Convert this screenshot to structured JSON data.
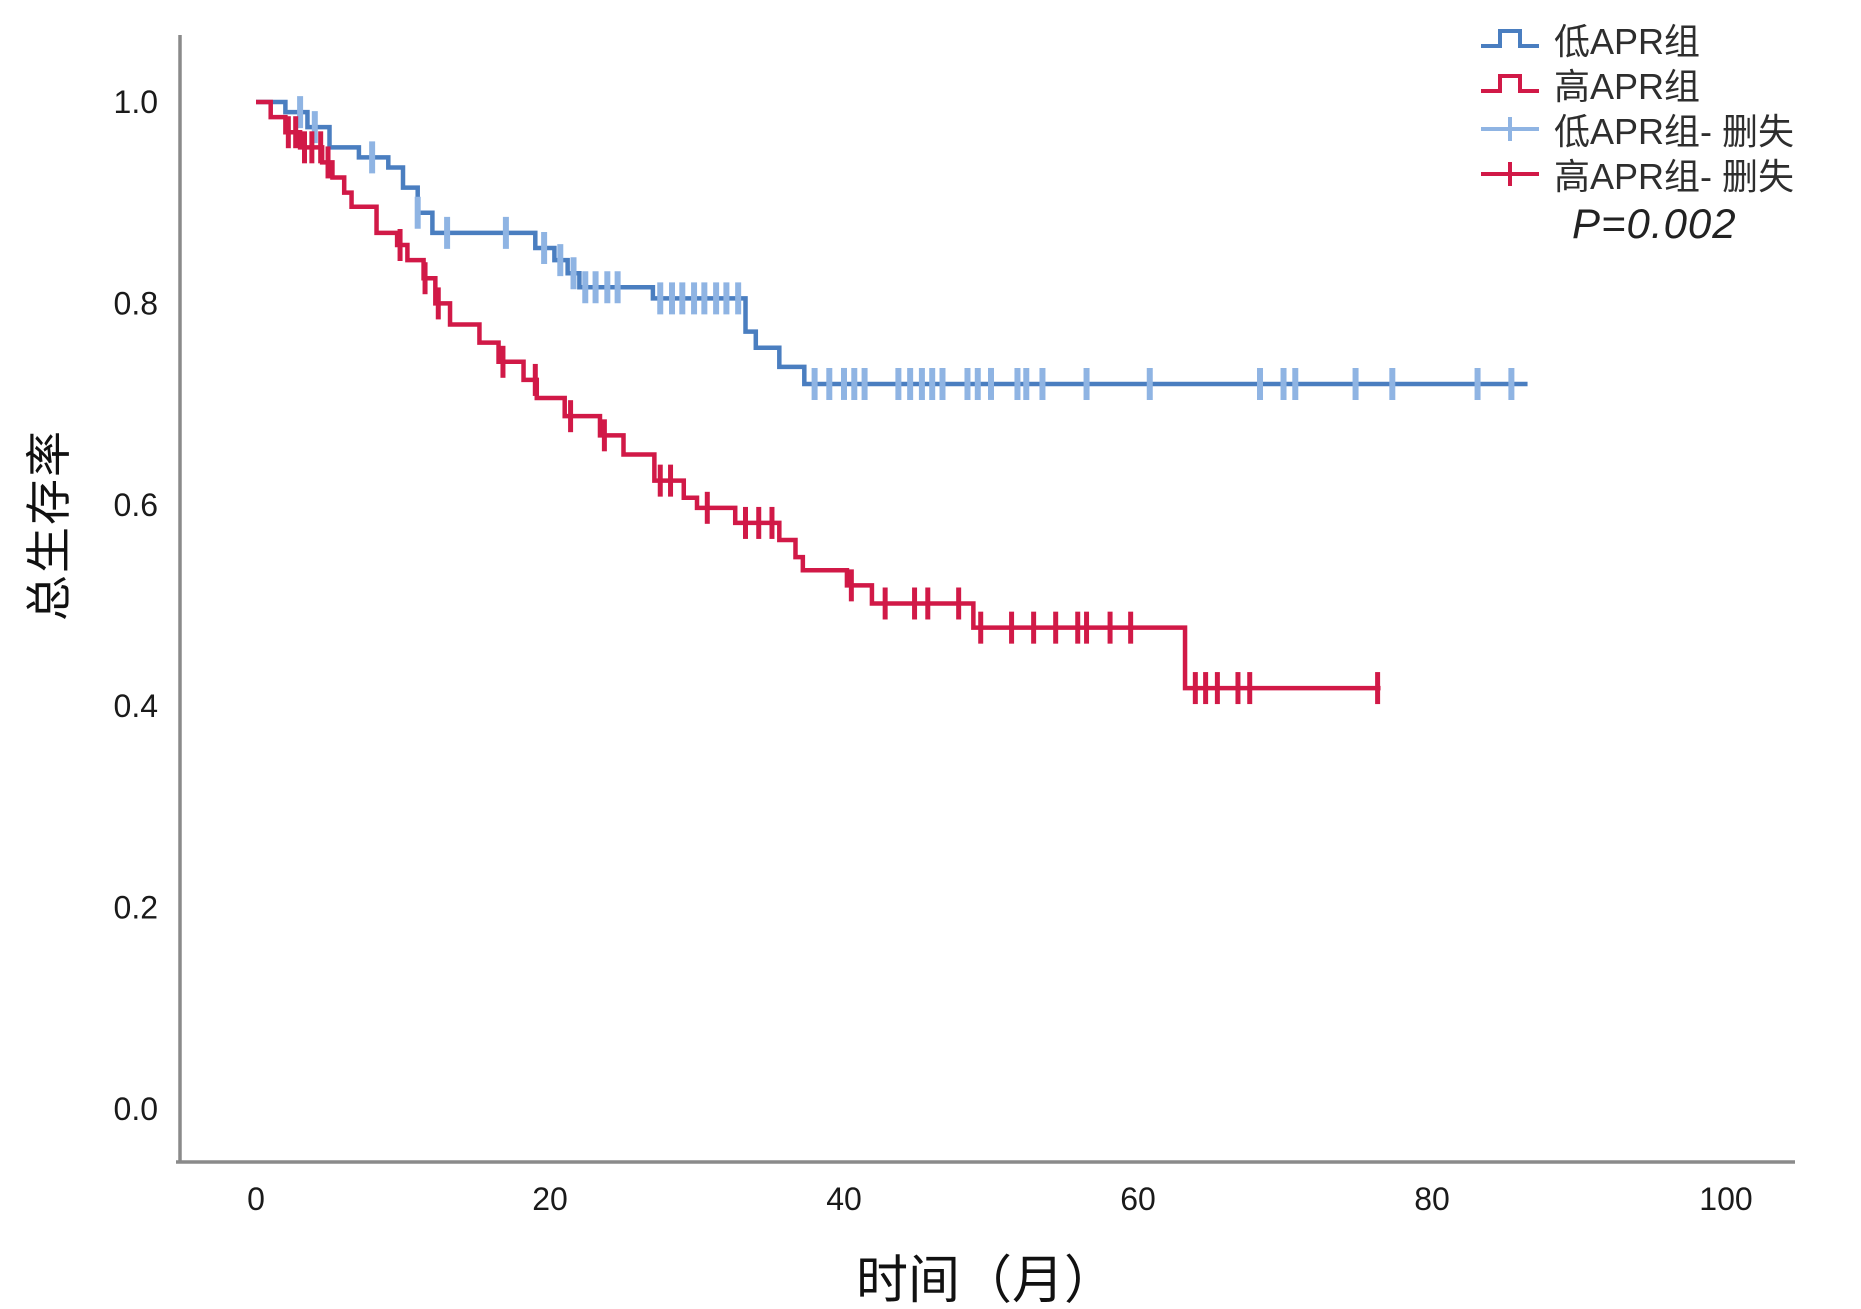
{
  "figure": {
    "colors": {
      "blue": "#4a7ec0",
      "blue_censor": "#8fb4e3",
      "red": "#d11947",
      "red_censor": "#d11947",
      "axis": "#8a8a8a",
      "text": "#1a1a1a"
    },
    "legend": {
      "position": "top-right",
      "items": [
        {
          "label": "低APR组",
          "marker": "step-line",
          "color_key": "blue"
        },
        {
          "label": "高APR组",
          "marker": "step-line",
          "color_key": "red"
        },
        {
          "label": "低APR组- 删失",
          "marker": "censor-cross",
          "color_key": "blue_censor"
        },
        {
          "label": "高APR组- 删失",
          "marker": "censor-cross",
          "color_key": "red_censor"
        }
      ]
    },
    "annotation": {
      "p_value": "P=0.002"
    }
  },
  "chart_data": {
    "type": "line",
    "subtype": "kaplan-meier-step-survival",
    "title": "",
    "xlabel": "时间（月）",
    "ylabel": "总生存率",
    "xlim": [
      0,
      105
    ],
    "ylim": [
      0.0,
      1.05
    ],
    "grid": false,
    "x_ticks": [
      0,
      20,
      40,
      60,
      80,
      100
    ],
    "y_ticks": [
      {
        "value": 1.0,
        "label": "1.0"
      },
      {
        "value": 0.8,
        "label": "0.8"
      },
      {
        "value": 0.6,
        "label": "0.6"
      },
      {
        "value": 0.4,
        "label": "0.4"
      },
      {
        "value": 0.2,
        "label": "0.2"
      },
      {
        "value": 0.0,
        "label": "0.0"
      }
    ],
    "series": [
      {
        "name": "低APR组",
        "color_key": "blue",
        "censor_color_key": "blue_censor",
        "end_time": 86.5,
        "steps": [
          [
            0,
            1.0
          ],
          [
            2,
            0.99
          ],
          [
            3.5,
            0.975
          ],
          [
            5,
            0.955
          ],
          [
            7,
            0.945
          ],
          [
            9,
            0.935
          ],
          [
            10,
            0.915
          ],
          [
            11,
            0.89
          ],
          [
            12,
            0.87
          ],
          [
            19,
            0.855
          ],
          [
            20.3,
            0.843
          ],
          [
            21.2,
            0.83
          ],
          [
            22,
            0.816
          ],
          [
            27,
            0.805
          ],
          [
            33.3,
            0.772
          ],
          [
            34,
            0.756
          ],
          [
            35.6,
            0.737
          ],
          [
            37.3,
            0.72
          ]
        ],
        "censor_times": [
          3,
          4,
          7.9,
          11,
          13,
          17,
          19.6,
          20.7,
          21.6,
          22.4,
          23.1,
          23.9,
          24.6,
          27.5,
          28.3,
          29,
          29.8,
          30.5,
          31.3,
          32,
          32.8,
          38,
          39,
          40,
          40.7,
          41.4,
          43.7,
          44.5,
          45.3,
          46,
          46.7,
          48.4,
          49.1,
          50,
          51.8,
          52.4,
          53.5,
          56.5,
          60.8,
          68.3,
          69.9,
          70.7,
          74.8,
          77.3,
          83.1,
          85.4
        ]
      },
      {
        "name": "高APR组",
        "color_key": "red",
        "censor_color_key": "red_censor",
        "end_time": 76.5,
        "steps": [
          [
            0,
            1.0
          ],
          [
            1,
            0.985
          ],
          [
            2,
            0.97
          ],
          [
            3,
            0.955
          ],
          [
            4.5,
            0.94
          ],
          [
            5.2,
            0.925
          ],
          [
            6,
            0.91
          ],
          [
            6.5,
            0.896
          ],
          [
            8.2,
            0.87
          ],
          [
            9.6,
            0.858
          ],
          [
            10.3,
            0.843
          ],
          [
            11.4,
            0.825
          ],
          [
            12.2,
            0.8
          ],
          [
            13.2,
            0.779
          ],
          [
            15.2,
            0.761
          ],
          [
            16.5,
            0.742
          ],
          [
            18.2,
            0.724
          ],
          [
            19.1,
            0.706
          ],
          [
            21,
            0.688
          ],
          [
            23.4,
            0.669
          ],
          [
            25,
            0.65
          ],
          [
            27.1,
            0.624
          ],
          [
            29.1,
            0.607
          ],
          [
            30,
            0.597
          ],
          [
            32.6,
            0.582
          ],
          [
            35.6,
            0.565
          ],
          [
            36.7,
            0.548
          ],
          [
            37.2,
            0.535
          ],
          [
            40.2,
            0.52
          ],
          [
            41.9,
            0.502
          ],
          [
            48.8,
            0.478
          ],
          [
            63.2,
            0.418
          ]
        ],
        "censor_times": [
          2.2,
          2.7,
          3.3,
          3.8,
          4.4,
          4.9,
          9.8,
          11.5,
          12.4,
          16.8,
          19,
          21.4,
          23.7,
          27.5,
          28.2,
          30.7,
          33.3,
          34.2,
          35.1,
          40.5,
          42.8,
          44.8,
          45.7,
          47.8,
          49.3,
          51.4,
          52.9,
          54.4,
          55.9,
          56.5,
          58.1,
          59.5,
          63.9,
          64.6,
          65.4,
          66.8,
          67.6,
          76.3
        ]
      }
    ],
    "annotations": [
      "P=0.002"
    ],
    "legend_entries": [
      "低APR组",
      "高APR组",
      "低APR组- 删失",
      "高APR组- 删失"
    ]
  }
}
